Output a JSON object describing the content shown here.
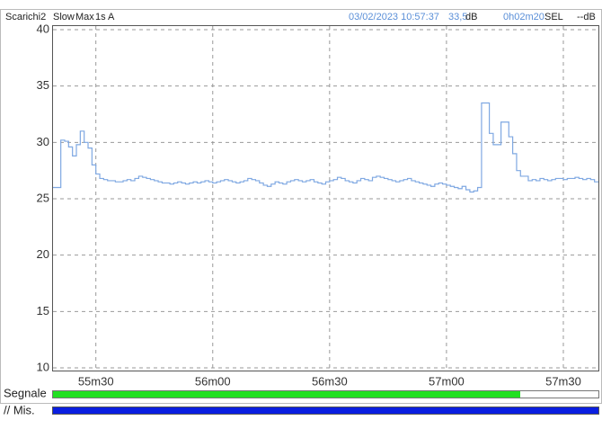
{
  "header": {
    "left": [
      "Scarichi2",
      "Slow",
      "Max",
      "1s",
      "A"
    ],
    "datetime": "03/02/2023 10:57:37",
    "level": "33,5",
    "level_unit": "dB",
    "duration": "0h02m20",
    "sel_label": "SEL",
    "sel_value": "--dB"
  },
  "chart_data": {
    "type": "line",
    "step": true,
    "color": "#7fa8e2",
    "grid": true,
    "xlim": [
      3319,
      3459
    ],
    "xticks": [
      {
        "value": 3330,
        "label": "55m30"
      },
      {
        "value": 3360,
        "label": "56m00"
      },
      {
        "value": 3390,
        "label": "56m30"
      },
      {
        "value": 3420,
        "label": "57m00"
      },
      {
        "value": 3450,
        "label": "57m30"
      }
    ],
    "ylim": [
      10,
      40
    ],
    "yticks": [
      10,
      15,
      20,
      25,
      30,
      35,
      40
    ],
    "x": [
      3319,
      3320,
      3321,
      3322,
      3323,
      3324,
      3325,
      3326,
      3327,
      3328,
      3329,
      3330,
      3331,
      3332,
      3333,
      3334,
      3335,
      3336,
      3337,
      3338,
      3339,
      3340,
      3341,
      3342,
      3343,
      3344,
      3345,
      3346,
      3347,
      3348,
      3349,
      3350,
      3351,
      3352,
      3353,
      3354,
      3355,
      3356,
      3357,
      3358,
      3359,
      3360,
      3361,
      3362,
      3363,
      3364,
      3365,
      3366,
      3367,
      3368,
      3369,
      3370,
      3371,
      3372,
      3373,
      3374,
      3375,
      3376,
      3377,
      3378,
      3379,
      3380,
      3381,
      3382,
      3383,
      3384,
      3385,
      3386,
      3387,
      3388,
      3389,
      3390,
      3391,
      3392,
      3393,
      3394,
      3395,
      3396,
      3397,
      3398,
      3399,
      3400,
      3401,
      3402,
      3403,
      3404,
      3405,
      3406,
      3407,
      3408,
      3409,
      3410,
      3411,
      3412,
      3413,
      3414,
      3415,
      3416,
      3417,
      3418,
      3419,
      3420,
      3421,
      3422,
      3423,
      3424,
      3425,
      3426,
      3427,
      3428,
      3429,
      3430,
      3431,
      3432,
      3433,
      3434,
      3435,
      3436,
      3437,
      3438,
      3439,
      3440,
      3441,
      3442,
      3443,
      3444,
      3445,
      3446,
      3447,
      3448,
      3449,
      3450,
      3451,
      3452,
      3453,
      3454,
      3455,
      3456,
      3457,
      3458
    ],
    "values": [
      26.0,
      26.0,
      30.2,
      30.1,
      29.6,
      28.8,
      29.8,
      31.0,
      30.0,
      29.5,
      28.0,
      27.2,
      26.8,
      26.7,
      26.6,
      26.6,
      26.5,
      26.5,
      26.6,
      26.7,
      26.6,
      26.8,
      27.0,
      26.9,
      26.8,
      26.7,
      26.6,
      26.5,
      26.4,
      26.4,
      26.3,
      26.4,
      26.5,
      26.4,
      26.3,
      26.4,
      26.5,
      26.4,
      26.5,
      26.6,
      26.5,
      26.4,
      26.5,
      26.6,
      26.7,
      26.6,
      26.5,
      26.4,
      26.5,
      26.6,
      26.8,
      26.7,
      26.6,
      26.4,
      26.2,
      26.1,
      26.3,
      26.5,
      26.4,
      26.3,
      26.5,
      26.6,
      26.7,
      26.6,
      26.5,
      26.6,
      26.7,
      26.5,
      26.4,
      26.3,
      26.5,
      26.6,
      26.7,
      26.9,
      26.8,
      26.6,
      26.5,
      26.4,
      26.6,
      26.8,
      26.7,
      26.6,
      26.9,
      27.0,
      26.9,
      26.8,
      26.7,
      26.6,
      26.5,
      26.6,
      26.7,
      26.8,
      26.6,
      26.5,
      26.4,
      26.3,
      26.2,
      26.1,
      26.3,
      26.4,
      26.3,
      26.2,
      26.1,
      26.0,
      25.9,
      26.1,
      25.8,
      25.6,
      25.7,
      26.0,
      33.5,
      33.5,
      30.8,
      29.8,
      29.8,
      31.8,
      31.8,
      30.5,
      29.0,
      27.5,
      27.0,
      27.0,
      26.6,
      26.7,
      26.6,
      26.8,
      26.7,
      26.6,
      26.7,
      26.8,
      26.8,
      26.7,
      26.8,
      26.8,
      26.9,
      26.8,
      26.7,
      26.8,
      26.7,
      26.5
    ]
  },
  "footer": {
    "signal": "Segnale",
    "measure": "// Mis."
  }
}
